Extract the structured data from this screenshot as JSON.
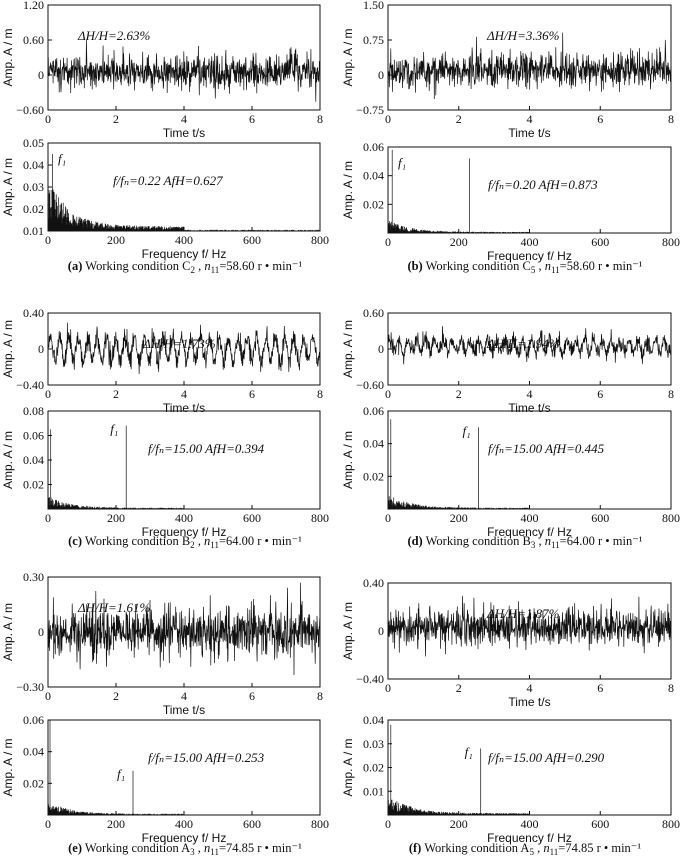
{
  "chart_data": [
    {
      "panel": "a",
      "kind": "time",
      "type": "line",
      "caption": {
        "tag": "(a)",
        "text": "Working condition C",
        "sub": "2",
        "n11": "58.60 r • min⁻¹"
      },
      "annotation": "ΔH/H=2.63%",
      "xlabel": "Time  t/s",
      "ylabel": "Amp. A / m",
      "xlim": [
        0,
        8
      ],
      "ylim": [
        -0.6,
        1.2
      ],
      "xticks": [
        "0",
        "2",
        "4",
        "6",
        "8"
      ],
      "yticks": [
        "1.20",
        "0.60",
        "0",
        "−0.60"
      ],
      "series": [
        {
          "amplitude": 0.25,
          "mean": 0.05,
          "periodic_amp": 0.0,
          "periods": 0
        }
      ]
    },
    {
      "panel": "b",
      "kind": "time",
      "type": "line",
      "caption": {
        "tag": "(b)",
        "text": "Working condition C",
        "sub": "5",
        "n11": "58.60 r • min⁻¹"
      },
      "annotation": "ΔH/H=3.36%",
      "xlabel": "Time  t/s",
      "ylabel": "Amp. A / m",
      "xlim": [
        0,
        8
      ],
      "ylim": [
        -0.75,
        1.5
      ],
      "xticks": [
        "0",
        "2",
        "4",
        "6",
        "8"
      ],
      "yticks": [
        "1.50",
        "0.75",
        "0",
        "−0.75"
      ],
      "series": [
        {
          "amplitude": 0.33,
          "mean": 0.1,
          "periodic_amp": 0.0,
          "periods": 0
        }
      ]
    },
    {
      "panel": "a",
      "kind": "freq",
      "type": "line",
      "annotation": {
        "ratio": "f/fₙ=0.22",
        "afh": "AfH=0.627"
      },
      "peak_label": "f₁",
      "xlabel": "Frequency f/ Hz",
      "ylabel": "Amp. A / m",
      "xlim": [
        0,
        800
      ],
      "ylim": [
        0.01,
        0.05
      ],
      "xticks": [
        "0",
        "200",
        "400",
        "600",
        "800"
      ],
      "yticks": [
        "0.05",
        "0.04",
        "0.03",
        "0.02",
        "0.01"
      ],
      "peak": {
        "freq": 13,
        "amp": 0.045
      },
      "noise_level": 0.011
    },
    {
      "panel": "b",
      "kind": "freq",
      "type": "line",
      "annotation": {
        "ratio": "f/fₙ=0.20",
        "afh": "AfH=0.873"
      },
      "peak_label": "f₁",
      "xlabel": "Frequency f/ Hz",
      "ylabel": "Amp. A / m",
      "xlim": [
        0,
        800
      ],
      "ylim": [
        0,
        0.06
      ],
      "xticks": [
        "0",
        "200",
        "400",
        "600",
        "800"
      ],
      "yticks": [
        "0.06",
        "0.04",
        "0.02"
      ],
      "peak": {
        "freq": 12,
        "amp": 0.058
      },
      "secondary_peak": {
        "freq": 230,
        "amp": 0.052
      },
      "noise_level": 0.004
    },
    {
      "panel": "c",
      "kind": "time",
      "type": "line",
      "caption": {
        "tag": "(c)",
        "text": "Working condition B",
        "sub": "2",
        "n11": "64.00 r • min⁻¹"
      },
      "annotation": "ΔH/H=1.73%",
      "xlabel": "Time  t/s",
      "ylabel": "Amp. A / m",
      "xlim": [
        0,
        8
      ],
      "ylim": [
        -0.4,
        0.4
      ],
      "xticks": [
        "0",
        "2",
        "4",
        "6",
        "8"
      ],
      "yticks": [
        "0.40",
        "0",
        "−0.40"
      ],
      "series": [
        {
          "amplitude": 0.1,
          "mean": 0.0,
          "periodic_amp": 0.15,
          "periods": 29
        }
      ]
    },
    {
      "panel": "d",
      "kind": "time",
      "type": "line",
      "caption": {
        "tag": "(d)",
        "text": "Working condition B",
        "sub": "3",
        "n11": "64.00 r • min⁻¹"
      },
      "annotation": "ΔH/H=1.94%",
      "xlabel": "Time  t/s",
      "ylabel": "Amp. A / m",
      "xlim": [
        0,
        8
      ],
      "ylim": [
        -0.6,
        0.6
      ],
      "xticks": [
        "0",
        "2",
        "4",
        "6",
        "8"
      ],
      "yticks": [
        "0.60",
        "0",
        "−0.60"
      ],
      "series": [
        {
          "amplitude": 0.13,
          "mean": 0.05,
          "periodic_amp": 0.12,
          "periods": 32
        }
      ]
    },
    {
      "panel": "c",
      "kind": "freq",
      "type": "line",
      "annotation": {
        "ratio": "f/fₙ=15.00",
        "afh": "AfH=0.394"
      },
      "peak_label": "f₁",
      "xlabel": "Frequency f/ Hz",
      "ylabel": "Amp. A / m",
      "xlim": [
        0,
        800
      ],
      "ylim": [
        0,
        0.08
      ],
      "xticks": [
        "0",
        "200",
        "400",
        "600",
        "800"
      ],
      "yticks": [
        "0.08",
        "0.06",
        "0.04",
        "0.02"
      ],
      "peak": {
        "freq": 230,
        "amp": 0.068
      },
      "noise_level": 0.005,
      "low_peak": {
        "freq": 8,
        "amp": 0.065
      }
    },
    {
      "panel": "d",
      "kind": "freq",
      "type": "line",
      "annotation": {
        "ratio": "f/fₙ=15.00",
        "afh": "AfH=0.445"
      },
      "peak_label": "f₁",
      "xlabel": "Frequency f/ Hz",
      "ylabel": "Amp. A / m",
      "xlim": [
        0,
        800
      ],
      "ylim": [
        0,
        0.06
      ],
      "xticks": [
        "0",
        "200",
        "400",
        "600",
        "800"
      ],
      "yticks": [
        "0.06",
        "0.04",
        "0.02"
      ],
      "peak": {
        "freq": 256,
        "amp": 0.05
      },
      "noise_level": 0.004,
      "low_peak": {
        "freq": 8,
        "amp": 0.055
      }
    },
    {
      "panel": "e",
      "kind": "time",
      "type": "line",
      "caption": {
        "tag": "(e)",
        "text": "Working condition A",
        "sub": "3",
        "n11": "74.85 r • min⁻¹"
      },
      "annotation": "ΔH/H=1.61%",
      "xlabel": "Time  t/s",
      "ylabel": "Amp. A / m",
      "xlim": [
        0,
        8
      ],
      "ylim": [
        -0.3,
        0.3
      ],
      "xticks": [
        "0",
        "2",
        "4",
        "6",
        "8"
      ],
      "yticks": [
        "0.30",
        "0",
        "−0.30"
      ],
      "series": [
        {
          "amplitude": 0.12,
          "mean": 0.0,
          "periodic_amp": 0.0,
          "periods": 0
        }
      ]
    },
    {
      "panel": "f",
      "kind": "time",
      "type": "line",
      "caption": {
        "tag": "(f)",
        "text": "Working condition A",
        "sub": "5",
        "n11": "74.85 r • min⁻¹"
      },
      "annotation": "ΔH/H=1.87%",
      "xlabel": "Time  t/s",
      "ylabel": "Amp. A / m",
      "xlim": [
        0,
        8
      ],
      "ylim": [
        -0.4,
        0.4
      ],
      "xticks": [
        "0",
        "2",
        "4",
        "6",
        "8"
      ],
      "yticks": [
        "0.40",
        "0",
        "−0.40"
      ],
      "series": [
        {
          "amplitude": 0.14,
          "mean": 0.03,
          "periodic_amp": 0.0,
          "periods": 0
        }
      ]
    },
    {
      "panel": "e",
      "kind": "freq",
      "type": "line",
      "annotation": {
        "ratio": "f/fₙ=15.00",
        "afh": "AfH=0.253"
      },
      "peak_label": "f₁",
      "xlabel": "Frequency f/ Hz",
      "ylabel": "Amp. A / m",
      "xlim": [
        0,
        800
      ],
      "ylim": [
        0,
        0.06
      ],
      "xticks": [
        "0",
        "200",
        "400",
        "600",
        "800"
      ],
      "yticks": [
        "0.06",
        "0.04",
        "0.02"
      ],
      "peak": {
        "freq": 250,
        "amp": 0.028
      },
      "noise_level": 0.004,
      "low_peak": {
        "freq": 6,
        "amp": 0.06
      }
    },
    {
      "panel": "f",
      "kind": "freq",
      "type": "line",
      "annotation": {
        "ratio": "f/fₙ=15.00",
        "afh": "AfH=0.290"
      },
      "peak_label": "f₁",
      "xlabel": "Frequency f/ Hz",
      "ylabel": "Amp. A / m",
      "xlim": [
        0,
        800
      ],
      "ylim": [
        0,
        0.04
      ],
      "xticks": [
        "0",
        "200",
        "400",
        "600",
        "800"
      ],
      "yticks": [
        "0.04",
        "0.03",
        "0.02",
        "0.01"
      ],
      "peak": {
        "freq": 262,
        "amp": 0.028
      },
      "noise_level": 0.004,
      "low_peak": {
        "freq": 8,
        "amp": 0.038
      }
    }
  ]
}
